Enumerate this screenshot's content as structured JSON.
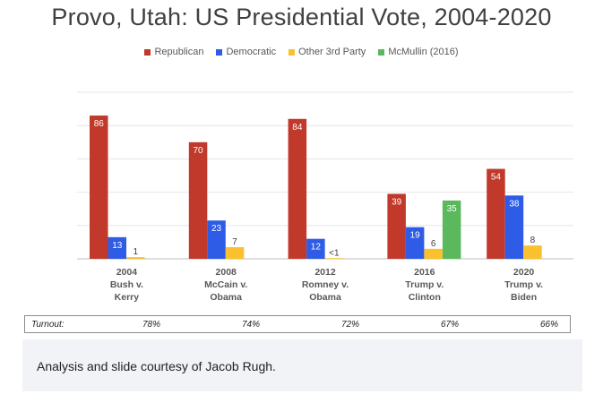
{
  "chart_data": {
    "type": "bar",
    "title": "Provo, Utah: US Presidential Vote, 2004-2020",
    "categories": [
      [
        "2004",
        "Bush v.",
        "Kerry"
      ],
      [
        "2008",
        "McCain v.",
        "Obama"
      ],
      [
        "2012",
        "Romney v.",
        "Obama"
      ],
      [
        "2016",
        "Trump v.",
        "Clinton"
      ],
      [
        "2020",
        "Trump v.",
        "Biden"
      ]
    ],
    "series": [
      {
        "name": "Republican",
        "color": "#c0392b",
        "values": [
          86,
          70,
          84,
          39,
          54
        ],
        "labels": [
          "86",
          "70",
          "84",
          "39",
          "54"
        ]
      },
      {
        "name": "Democratic",
        "color": "#2e5ce6",
        "values": [
          13,
          23,
          12,
          19,
          38
        ],
        "labels": [
          "13",
          "23",
          "12",
          "19",
          "38"
        ]
      },
      {
        "name": "Other 3rd Party",
        "color": "#fbc02d",
        "values": [
          1,
          7,
          0.4,
          6,
          8
        ],
        "labels": [
          "1",
          "7",
          "<1",
          "6",
          "8"
        ]
      },
      {
        "name": "McMullin (2016)",
        "color": "#5cb85c",
        "values": [
          null,
          null,
          null,
          35,
          null
        ],
        "labels": [
          "",
          "",
          "",
          "35",
          ""
        ]
      }
    ],
    "ylim": [
      0,
      100
    ],
    "grid": true,
    "legend": "top",
    "turnout": {
      "label": "Turnout:",
      "values": [
        "78%",
        "74%",
        "72%",
        "67%",
        "66%"
      ]
    }
  },
  "caption": "Analysis and slide courtesy of Jacob Rugh."
}
